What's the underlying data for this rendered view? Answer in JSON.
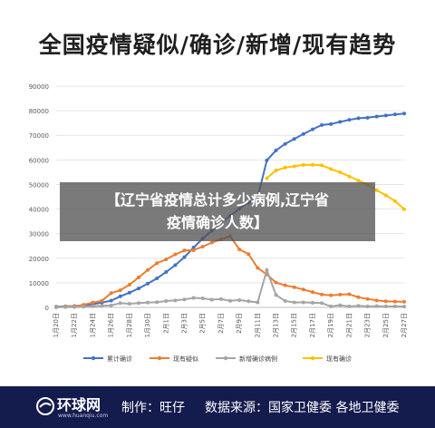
{
  "title": "全国疫情疑似/确诊/新增/现有趋势",
  "overlay": {
    "line1": "【辽宁省疫情总计多少病例,辽宁省",
    "line2": "疫情确诊人数】"
  },
  "footer": {
    "logo_text": "环球网",
    "logo_url": "www.huanqiu.com",
    "credit": "制作：旺仔",
    "source": "数据来源：国家卫健委 各地卫健委"
  },
  "colors": {
    "cumulative": "#4472c4",
    "suspected": "#ed7d31",
    "new_confirmed": "#a5a5a5",
    "current_confirmed": "#ffc000",
    "footer_bg": "#141b4d"
  },
  "chart_data": {
    "type": "line",
    "ylim": [
      0,
      90000
    ],
    "yticks": [
      "0",
      "10000",
      "20000",
      "30000",
      "40000",
      "50000",
      "60000",
      "70000",
      "80000",
      "90000"
    ],
    "x": [
      "1月20日",
      "1月21日",
      "1月22日",
      "1月23日",
      "1月24日",
      "1月25日",
      "1月26日",
      "1月27日",
      "1月28日",
      "1月29日",
      "1月30日",
      "1月31日",
      "2月1日",
      "2月2日",
      "2月3日",
      "2月4日",
      "2月5日",
      "2月6日",
      "2月7日",
      "2月8日",
      "2月9日",
      "2月10日",
      "2月11日",
      "2月12日",
      "2月13日",
      "2月14日",
      "2月15日",
      "2月16日",
      "2月17日",
      "2月18日",
      "2月19日",
      "2月20日",
      "2月21日",
      "2月22日",
      "2月23日",
      "2月24日",
      "2月25日",
      "2月26日",
      "2月27日"
    ],
    "xtick_labels": [
      "1月20日",
      "1月22日",
      "1月24日",
      "1月26日",
      "1月28日",
      "1月30日",
      "2月1日",
      "2月3日",
      "2月5日",
      "2月7日",
      "2月9日",
      "2月11日",
      "2月13日",
      "2月15日",
      "2月17日",
      "2月19日",
      "2月21日",
      "2月23日",
      "2月25日",
      "2月27日"
    ],
    "grid": true,
    "legend_position": "bottom",
    "series": [
      {
        "name": "累计确诊",
        "color_key": "cumulative",
        "marker": "circle",
        "values": [
          291,
          440,
          571,
          830,
          1287,
          1975,
          2744,
          4515,
          5974,
          7711,
          9692,
          11791,
          14380,
          17205,
          20438,
          24324,
          28018,
          31161,
          34546,
          37198,
          40171,
          42638,
          44653,
          59804,
          63851,
          66492,
          68500,
          70548,
          72436,
          74185,
          74576,
          75465,
          76288,
          76936,
          77150,
          77658,
          78064,
          78497,
          78824
        ]
      },
      {
        "name": "现有疑似",
        "color_key": "suspected",
        "marker": "circle",
        "values": [
          54,
          393,
          393,
          1072,
          1965,
          2684,
          5794,
          6973,
          9239,
          12167,
          15238,
          17988,
          19544,
          21558,
          23214,
          23260,
          24702,
          26359,
          27657,
          28942,
          23589,
          21675,
          16067,
          13435,
          10109,
          8969,
          8228,
          7264,
          6242,
          5248,
          4922,
          5206,
          5365,
          4148,
          3434,
          2824,
          2491,
          2358,
          2308
        ]
      },
      {
        "name": "新增确诊病例",
        "color_key": "new_confirmed",
        "marker": "circle",
        "values": [
          77,
          149,
          131,
          259,
          444,
          688,
          769,
          1771,
          1459,
          1737,
          1982,
          2102,
          2590,
          2829,
          3235,
          3887,
          3694,
          3143,
          3385,
          2652,
          2973,
          2467,
          2015,
          15152,
          5090,
          2641,
          2009,
          2048,
          1886,
          1749,
          394,
          889,
          397,
          648,
          409,
          508,
          406,
          433,
          327
        ]
      },
      {
        "name": "现有确诊",
        "color_key": "current_confirmed",
        "marker": "circle",
        "values": [
          null,
          null,
          null,
          null,
          null,
          null,
          null,
          null,
          null,
          null,
          null,
          null,
          null,
          null,
          null,
          null,
          null,
          null,
          null,
          null,
          null,
          null,
          null,
          52526,
          55748,
          56873,
          57416,
          57934,
          58016,
          57805,
          56303,
          54965,
          53284,
          51606,
          49824,
          47672,
          45604,
          43258,
          39919
        ]
      }
    ]
  }
}
